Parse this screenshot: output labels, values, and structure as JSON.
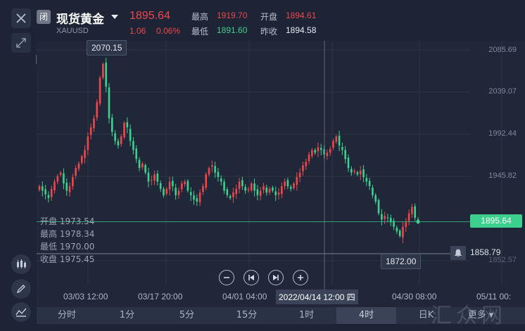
{
  "header": {
    "close_icon": "close-x",
    "closed_badge": "闭",
    "name": "现货黄金",
    "dropdown_icon": "caret-down",
    "code": "XAUUSD",
    "price": "1895.64",
    "change": "1.06",
    "change_pct": "0.06%",
    "high_label": "最高",
    "high_value": "1919.70",
    "open_label": "开盘",
    "open_value": "1894.61",
    "low_label": "最低",
    "low_value": "1891.60",
    "prev_label": "昨收",
    "prev_value": "1894.58"
  },
  "expand_icon": "expand-arrows",
  "y_axis": [
    "2085.69",
    "2039.07",
    "1992.44",
    "1945.82",
    "1852.57"
  ],
  "x_axis": [
    "03/03 12:00",
    "03/17 20:00",
    "04/01 04:00",
    "04/30 08:00",
    "05/11 00:"
  ],
  "crosshair_time": "2022/04/14 12:00 四",
  "max_tooltip": "2070.15",
  "min_tooltip": "1872.00",
  "current_price_tag": "1895.64",
  "alert_price": "1858.79",
  "ohlc_panel": {
    "open": "开盘 1973.54",
    "high": "最高 1978.34",
    "low": "最低 1970.00",
    "close": "收盘 1975.45"
  },
  "controls": [
    "zoom-out",
    "step-back",
    "step-forward",
    "zoom-in"
  ],
  "tabs": [
    "分时",
    "1分",
    "5分",
    "15分",
    "1时",
    "4时",
    "日K",
    "更多"
  ],
  "active_tab": "4时",
  "colors": {
    "up": "#f0464c",
    "down": "#3fcf8e",
    "background": "#1d2435"
  },
  "watermark": "汇众网",
  "chart_data": {
    "type": "candlestick",
    "ylim": [
      1852.57,
      2085.69
    ],
    "y_ticks": [
      2085.69,
      2039.07,
      1992.44,
      1945.82,
      1852.57
    ],
    "x_ticks": [
      "03/03 12:00",
      "03/17 20:00",
      "04/01 04:00",
      "04/30 08:00",
      "05/11 00:"
    ],
    "high_marker": 2070.15,
    "low_marker": 1872.0,
    "current_price": 1895.64,
    "alert_level": 1858.79,
    "close_series": [
      1935,
      1930,
      1926,
      1922,
      1932,
      1940,
      1946,
      1950,
      1938,
      1930,
      1935,
      1945,
      1955,
      1960,
      1968,
      1975,
      1990,
      2000,
      2010,
      2028,
      2055,
      2070,
      2045,
      2010,
      1995,
      1985,
      1980,
      1990,
      2005,
      2000,
      1985,
      1975,
      1965,
      1955,
      1960,
      1950,
      1940,
      1942,
      1948,
      1940,
      1932,
      1925,
      1932,
      1940,
      1935,
      1925,
      1930,
      1938,
      1940,
      1930,
      1925,
      1920,
      1918,
      1928,
      1935,
      1948,
      1955,
      1958,
      1950,
      1945,
      1940,
      1930,
      1925,
      1922,
      1928,
      1932,
      1940,
      1935,
      1930,
      1932,
      1938,
      1930,
      1925,
      1930,
      1935,
      1928,
      1932,
      1930,
      1925,
      1928,
      1935,
      1940,
      1935,
      1932,
      1938,
      1945,
      1950,
      1958,
      1962,
      1970,
      1975,
      1972,
      1978,
      1975,
      1970,
      1972,
      1976,
      1985,
      1990,
      1980,
      1975,
      1965,
      1955,
      1950,
      1952,
      1948,
      1952,
      1945,
      1940,
      1935,
      1925,
      1918,
      1905,
      1898,
      1902,
      1900,
      1895,
      1890,
      1885,
      1880,
      1890,
      1895,
      1905,
      1912,
      1900,
      1895.64
    ]
  }
}
